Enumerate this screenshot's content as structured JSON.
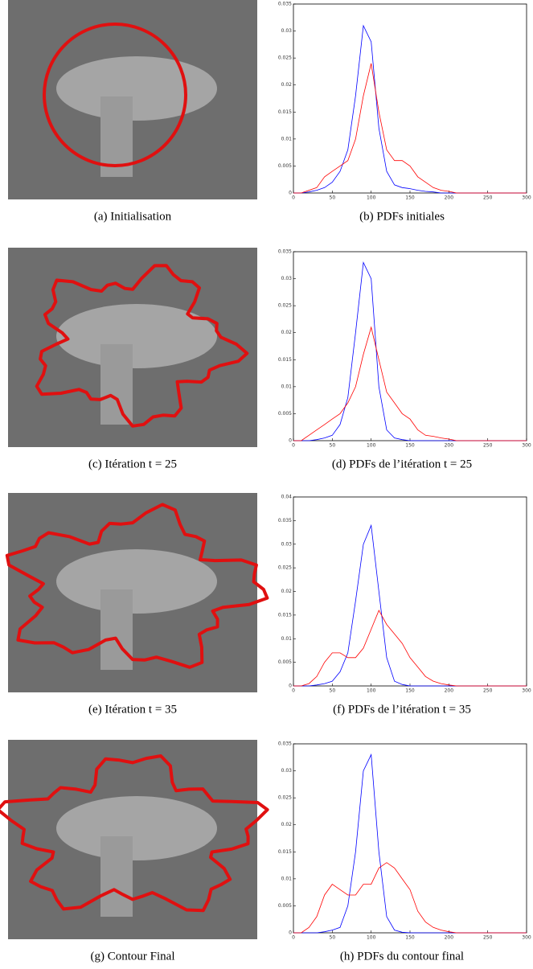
{
  "images": [
    {
      "caption": "(a) Initialisation"
    },
    {
      "caption": "(c) Itération  t = 25"
    },
    {
      "caption": "(e) Itération  t = 35"
    },
    {
      "caption": "(g) Contour Final"
    }
  ],
  "chart_data": [
    {
      "type": "line",
      "caption": "(b) PDFs initiales",
      "x": [
        0,
        10,
        20,
        30,
        40,
        50,
        60,
        70,
        80,
        90,
        100,
        110,
        120,
        130,
        140,
        150,
        160,
        170,
        180,
        190,
        200,
        210,
        220,
        230,
        240,
        250,
        260,
        270,
        280,
        290,
        300
      ],
      "xlim": [
        0,
        300
      ],
      "xticks": [
        0,
        50,
        100,
        150,
        200,
        250,
        300
      ],
      "ylim": [
        0,
        0.035
      ],
      "yticks": [
        0,
        0.005,
        0.01,
        0.015,
        0.02,
        0.025,
        0.03,
        0.035
      ],
      "series": [
        {
          "color": "#0000ff",
          "values": [
            0,
            0,
            0.0002,
            0.0005,
            0.001,
            0.002,
            0.004,
            0.008,
            0.018,
            0.031,
            0.028,
            0.012,
            0.004,
            0.0015,
            0.001,
            0.0008,
            0.0005,
            0.0003,
            0.0002,
            0,
            0,
            0,
            0,
            0,
            0,
            0,
            0,
            0,
            0,
            0,
            0
          ]
        },
        {
          "color": "#ff0000",
          "values": [
            0,
            0,
            0.0005,
            0.001,
            0.003,
            0.004,
            0.005,
            0.006,
            0.01,
            0.018,
            0.024,
            0.015,
            0.008,
            0.006,
            0.006,
            0.005,
            0.003,
            0.002,
            0.001,
            0.0005,
            0.0003,
            0,
            0,
            0,
            0,
            0,
            0,
            0,
            0,
            0,
            0
          ]
        }
      ]
    },
    {
      "type": "line",
      "caption": "(d) PDFs de l’itération  t = 25",
      "x": [
        0,
        10,
        20,
        30,
        40,
        50,
        60,
        70,
        80,
        90,
        100,
        110,
        120,
        130,
        140,
        150,
        160,
        170,
        180,
        190,
        200,
        210,
        220,
        230,
        240,
        250,
        260,
        270,
        280,
        290,
        300
      ],
      "xlim": [
        0,
        300
      ],
      "xticks": [
        0,
        50,
        100,
        150,
        200,
        250,
        300
      ],
      "ylim": [
        0,
        0.035
      ],
      "yticks": [
        0,
        0.005,
        0.01,
        0.015,
        0.02,
        0.025,
        0.03,
        0.035
      ],
      "series": [
        {
          "color": "#0000ff",
          "values": [
            0,
            0,
            0,
            0.0002,
            0.0005,
            0.001,
            0.003,
            0.008,
            0.02,
            0.033,
            0.03,
            0.01,
            0.002,
            0.0005,
            0.0002,
            0,
            0,
            0,
            0,
            0,
            0,
            0,
            0,
            0,
            0,
            0,
            0,
            0,
            0,
            0,
            0
          ]
        },
        {
          "color": "#ff0000",
          "values": [
            0,
            0,
            0.001,
            0.002,
            0.003,
            0.004,
            0.005,
            0.007,
            0.01,
            0.016,
            0.021,
            0.015,
            0.009,
            0.007,
            0.005,
            0.004,
            0.002,
            0.001,
            0.0008,
            0.0005,
            0.0003,
            0,
            0,
            0,
            0,
            0,
            0,
            0,
            0,
            0,
            0
          ]
        }
      ]
    },
    {
      "type": "line",
      "caption": "(f) PDFs de l’itération  t = 35",
      "x": [
        0,
        10,
        20,
        30,
        40,
        50,
        60,
        70,
        80,
        90,
        100,
        110,
        120,
        130,
        140,
        150,
        160,
        170,
        180,
        190,
        200,
        210,
        220,
        230,
        240,
        250,
        260,
        270,
        280,
        290,
        300
      ],
      "xlim": [
        0,
        300
      ],
      "xticks": [
        0,
        50,
        100,
        150,
        200,
        250,
        300
      ],
      "ylim": [
        0,
        0.04
      ],
      "yticks": [
        0,
        0.005,
        0.01,
        0.015,
        0.02,
        0.025,
        0.03,
        0.035,
        0.04
      ],
      "series": [
        {
          "color": "#0000ff",
          "values": [
            0,
            0,
            0,
            0.0002,
            0.0005,
            0.001,
            0.003,
            0.007,
            0.018,
            0.03,
            0.034,
            0.02,
            0.006,
            0.001,
            0.0003,
            0,
            0,
            0,
            0,
            0,
            0,
            0,
            0,
            0,
            0,
            0,
            0,
            0,
            0,
            0,
            0
          ]
        },
        {
          "color": "#ff0000",
          "values": [
            0,
            0,
            0.0005,
            0.002,
            0.005,
            0.007,
            0.007,
            0.006,
            0.006,
            0.008,
            0.012,
            0.016,
            0.013,
            0.011,
            0.009,
            0.006,
            0.004,
            0.002,
            0.001,
            0.0005,
            0.0002,
            0,
            0,
            0,
            0,
            0,
            0,
            0,
            0,
            0,
            0
          ]
        }
      ]
    },
    {
      "type": "line",
      "caption": "(h) PDFs du contour final",
      "x": [
        0,
        10,
        20,
        30,
        40,
        50,
        60,
        70,
        80,
        90,
        100,
        110,
        120,
        130,
        140,
        150,
        160,
        170,
        180,
        190,
        200,
        210,
        220,
        230,
        240,
        250,
        260,
        270,
        280,
        290,
        300
      ],
      "xlim": [
        0,
        300
      ],
      "xticks": [
        0,
        50,
        100,
        150,
        200,
        250,
        300
      ],
      "ylim": [
        0,
        0.035
      ],
      "yticks": [
        0,
        0.005,
        0.01,
        0.015,
        0.02,
        0.025,
        0.03,
        0.035
      ],
      "series": [
        {
          "color": "#0000ff",
          "values": [
            0,
            0,
            0,
            0,
            0.0002,
            0.0005,
            0.001,
            0.005,
            0.015,
            0.03,
            0.033,
            0.015,
            0.003,
            0.0005,
            0.0001,
            0,
            0,
            0,
            0,
            0,
            0,
            0,
            0,
            0,
            0,
            0,
            0,
            0,
            0,
            0,
            0
          ]
        },
        {
          "color": "#ff0000",
          "values": [
            0,
            0,
            0.001,
            0.003,
            0.007,
            0.009,
            0.008,
            0.007,
            0.007,
            0.009,
            0.009,
            0.012,
            0.013,
            0.012,
            0.01,
            0.008,
            0.004,
            0.002,
            0.001,
            0.0005,
            0.0002,
            0,
            0,
            0,
            0,
            0,
            0,
            0,
            0,
            0,
            0
          ]
        }
      ]
    }
  ]
}
